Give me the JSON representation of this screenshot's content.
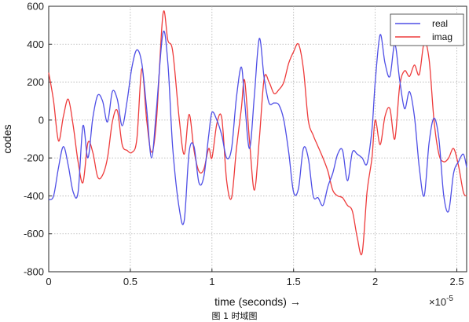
{
  "caption": "图 1 时域图",
  "chart_data": {
    "type": "line",
    "xlabel": "time  (seconds) →",
    "ylabel": "codes",
    "x_multiplier_label": "×10",
    "x_multiplier_exp": "-5",
    "xlim": [
      0,
      2.56
    ],
    "ylim": [
      -800,
      600
    ],
    "xticks": [
      "0",
      "0.5",
      "1",
      "1.5",
      "2",
      "2.5"
    ],
    "xtick_values": [
      0,
      0.5,
      1,
      1.5,
      2,
      2.5
    ],
    "yticks": [
      "600",
      "400",
      "200",
      "0",
      "-200",
      "-400",
      "-600",
      "-800"
    ],
    "ytick_values": [
      600,
      400,
      200,
      0,
      -200,
      -400,
      -600,
      -800
    ],
    "grid": true,
    "legend_position": "top-right",
    "colors": {
      "real": "#4f4fe6",
      "imag": "#ee3b3b"
    },
    "series": [
      {
        "name": "real",
        "x": [
          0,
          0.03,
          0.06,
          0.09,
          0.12,
          0.15,
          0.18,
          0.21,
          0.24,
          0.27,
          0.3,
          0.33,
          0.36,
          0.39,
          0.42,
          0.45,
          0.48,
          0.51,
          0.54,
          0.57,
          0.6,
          0.63,
          0.66,
          0.7,
          0.73,
          0.76,
          0.8,
          0.83,
          0.86,
          0.89,
          0.92,
          0.95,
          0.98,
          1.0,
          1.03,
          1.06,
          1.09,
          1.12,
          1.15,
          1.18,
          1.2,
          1.23,
          1.26,
          1.29,
          1.32,
          1.35,
          1.38,
          1.41,
          1.44,
          1.47,
          1.5,
          1.53,
          1.56,
          1.59,
          1.62,
          1.65,
          1.68,
          1.71,
          1.74,
          1.77,
          1.8,
          1.83,
          1.86,
          1.89,
          1.92,
          1.95,
          1.98,
          2.0,
          2.03,
          2.06,
          2.09,
          2.12,
          2.15,
          2.18,
          2.21,
          2.24,
          2.27,
          2.3,
          2.33,
          2.36,
          2.39,
          2.42,
          2.45,
          2.48,
          2.51,
          2.54,
          2.56
        ],
        "values": [
          -420,
          -400,
          -250,
          -140,
          -240,
          -380,
          -380,
          -30,
          -200,
          10,
          130,
          100,
          -10,
          150,
          110,
          -30,
          100,
          280,
          370,
          300,
          60,
          -200,
          60,
          460,
          300,
          -150,
          -470,
          -530,
          -170,
          -140,
          -330,
          -300,
          -80,
          40,
          0,
          -80,
          -200,
          -150,
          120,
          280,
          100,
          -150,
          130,
          430,
          220,
          90,
          90,
          80,
          0,
          -170,
          -380,
          -360,
          -150,
          -200,
          -400,
          -410,
          -450,
          -350,
          -280,
          -180,
          -160,
          -320,
          -170,
          -180,
          -200,
          -230,
          -50,
          200,
          450,
          300,
          230,
          400,
          210,
          60,
          150,
          20,
          -250,
          -400,
          -120,
          10,
          -100,
          -400,
          -480,
          -280,
          -220,
          -180,
          -250
        ]
      },
      {
        "name": "imag",
        "x": [
          0,
          0.03,
          0.06,
          0.09,
          0.12,
          0.15,
          0.18,
          0.21,
          0.24,
          0.27,
          0.3,
          0.33,
          0.36,
          0.39,
          0.42,
          0.45,
          0.48,
          0.51,
          0.54,
          0.57,
          0.6,
          0.63,
          0.66,
          0.7,
          0.73,
          0.76,
          0.8,
          0.83,
          0.86,
          0.89,
          0.92,
          0.95,
          0.98,
          1.0,
          1.03,
          1.06,
          1.09,
          1.12,
          1.15,
          1.18,
          1.2,
          1.23,
          1.26,
          1.29,
          1.32,
          1.35,
          1.38,
          1.41,
          1.44,
          1.47,
          1.5,
          1.53,
          1.56,
          1.59,
          1.62,
          1.65,
          1.68,
          1.71,
          1.74,
          1.77,
          1.8,
          1.83,
          1.86,
          1.89,
          1.92,
          1.95,
          1.98,
          2.0,
          2.03,
          2.06,
          2.09,
          2.12,
          2.15,
          2.18,
          2.21,
          2.24,
          2.27,
          2.3,
          2.33,
          2.36,
          2.39,
          2.42,
          2.45,
          2.48,
          2.51,
          2.54,
          2.56
        ],
        "values": [
          250,
          100,
          -110,
          20,
          110,
          -30,
          -220,
          -330,
          -120,
          -170,
          -300,
          -290,
          -200,
          -10,
          50,
          -130,
          -160,
          -170,
          -100,
          270,
          0,
          -170,
          0,
          560,
          420,
          360,
          0,
          -180,
          30,
          -160,
          -270,
          -260,
          -150,
          -200,
          -20,
          10,
          -320,
          -410,
          -150,
          60,
          210,
          -110,
          -370,
          -100,
          220,
          200,
          140,
          160,
          200,
          300,
          360,
          400,
          270,
          0,
          -80,
          -140,
          -200,
          -270,
          -370,
          -400,
          -410,
          -450,
          -480,
          -620,
          -700,
          -380,
          -200,
          0,
          -130,
          20,
          60,
          -100,
          180,
          260,
          230,
          290,
          240,
          410,
          320,
          0,
          -180,
          -220,
          -200,
          -150,
          -240,
          -380,
          -400
        ]
      }
    ]
  }
}
